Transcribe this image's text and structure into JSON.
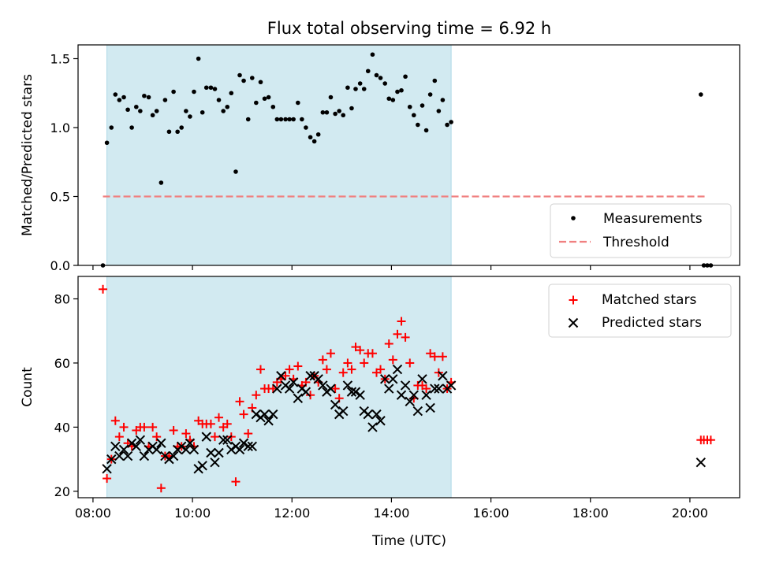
{
  "chart_data": {
    "title": "Flux total observing time = 6.92 h",
    "xlabel": "Time (UTC)",
    "x_unit": "hours (UTC)",
    "xlim": [
      7.7,
      21.0
    ],
    "x_ticks": [
      {
        "value": 8,
        "label": "08:00"
      },
      {
        "value": 10,
        "label": "10:00"
      },
      {
        "value": 12,
        "label": "12:00"
      },
      {
        "value": 14,
        "label": "14:00"
      },
      {
        "value": 16,
        "label": "16:00"
      },
      {
        "value": 18,
        "label": "18:00"
      },
      {
        "value": 20,
        "label": "20:00"
      }
    ],
    "observing_window": [
      8.28,
      15.2
    ],
    "observing_window_color": "#add8e6",
    "panels": [
      {
        "type": "scatter",
        "ylabel": "Matched/Predicted stars",
        "ylim": [
          0,
          1.6
        ],
        "y_ticks": [
          {
            "value": 0,
            "label": "0.0"
          },
          {
            "value": 0.5,
            "label": "0.5"
          },
          {
            "value": 1.0,
            "label": "1.0"
          },
          {
            "value": 1.5,
            "label": "1.5"
          }
        ],
        "legend": [
          "Measurements",
          "Threshold"
        ],
        "legend_position": "lower-right",
        "threshold": {
          "name": "Threshold",
          "y": 0.5,
          "x": [
            8.2,
            20.3
          ],
          "color": "#f08080"
        },
        "measurements": {
          "name": "Measurements",
          "color": "#000000",
          "x": [
            8.2,
            8.28,
            8.37,
            8.45,
            8.53,
            8.62,
            8.7,
            8.78,
            8.87,
            8.95,
            9.03,
            9.12,
            9.2,
            9.28,
            9.37,
            9.45,
            9.53,
            9.62,
            9.7,
            9.78,
            9.87,
            9.95,
            10.03,
            10.12,
            10.2,
            10.28,
            10.37,
            10.45,
            10.53,
            10.62,
            10.7,
            10.78,
            10.87,
            10.95,
            11.03,
            11.12,
            11.2,
            11.28,
            11.37,
            11.45,
            11.53,
            11.62,
            11.7,
            11.78,
            11.87,
            11.95,
            12.03,
            12.12,
            12.2,
            12.28,
            12.37,
            12.45,
            12.53,
            12.62,
            12.7,
            12.78,
            12.87,
            12.95,
            13.03,
            13.12,
            13.2,
            13.28,
            13.37,
            13.45,
            13.53,
            13.62,
            13.7,
            13.78,
            13.87,
            13.95,
            14.03,
            14.12,
            14.2,
            14.28,
            14.37,
            14.45,
            14.53,
            14.62,
            14.7,
            14.78,
            14.87,
            14.95,
            15.03,
            15.12,
            15.2,
            20.22,
            20.28,
            20.35,
            20.42
          ],
          "y": [
            0.0,
            0.89,
            1.0,
            1.24,
            1.2,
            1.22,
            1.13,
            1.0,
            1.15,
            1.12,
            1.23,
            1.22,
            1.09,
            1.12,
            0.6,
            1.2,
            0.97,
            1.26,
            0.97,
            1.0,
            1.12,
            1.08,
            1.26,
            1.5,
            1.11,
            1.29,
            1.29,
            1.28,
            1.2,
            1.12,
            1.15,
            1.25,
            0.68,
            1.38,
            1.34,
            1.06,
            1.36,
            1.18,
            1.33,
            1.21,
            1.22,
            1.15,
            1.06,
            1.06,
            1.06,
            1.06,
            1.06,
            1.18,
            1.06,
            1.0,
            0.93,
            0.9,
            0.95,
            1.11,
            1.11,
            1.22,
            1.1,
            1.12,
            1.09,
            1.29,
            1.14,
            1.28,
            1.32,
            1.28,
            1.41,
            1.53,
            1.38,
            1.36,
            1.32,
            1.21,
            1.2,
            1.26,
            1.27,
            1.37,
            1.15,
            1.09,
            1.02,
            1.16,
            0.98,
            1.24,
            1.34,
            1.12,
            1.2,
            1.02,
            1.04,
            1.24,
            0.0,
            0.0,
            0.0
          ]
        }
      },
      {
        "type": "scatter",
        "ylabel": "Count",
        "ylim": [
          18,
          87
        ],
        "y_ticks": [
          {
            "value": 20,
            "label": "20"
          },
          {
            "value": 40,
            "label": "40"
          },
          {
            "value": 60,
            "label": "60"
          },
          {
            "value": 80,
            "label": "80"
          }
        ],
        "legend": [
          "Matched stars",
          "Predicted stars"
        ],
        "legend_position": "upper-right",
        "series": [
          {
            "name": "Matched stars",
            "marker": "plus",
            "color": "#ff0000",
            "x": [
              8.2,
              8.28,
              8.37,
              8.45,
              8.53,
              8.62,
              8.7,
              8.78,
              8.87,
              8.95,
              9.03,
              9.12,
              9.2,
              9.28,
              9.37,
              9.45,
              9.53,
              9.62,
              9.7,
              9.78,
              9.87,
              9.95,
              10.03,
              10.12,
              10.2,
              10.28,
              10.37,
              10.45,
              10.53,
              10.62,
              10.7,
              10.78,
              10.87,
              10.95,
              11.03,
              11.12,
              11.2,
              11.28,
              11.37,
              11.45,
              11.53,
              11.62,
              11.7,
              11.78,
              11.87,
              11.95,
              12.03,
              12.12,
              12.2,
              12.28,
              12.37,
              12.45,
              12.53,
              12.62,
              12.7,
              12.78,
              12.87,
              12.95,
              13.03,
              13.12,
              13.2,
              13.28,
              13.37,
              13.45,
              13.53,
              13.62,
              13.7,
              13.78,
              13.87,
              13.95,
              14.03,
              14.12,
              14.2,
              14.28,
              14.37,
              14.45,
              14.53,
              14.62,
              14.7,
              14.78,
              14.87,
              14.95,
              15.03,
              15.12,
              15.2,
              20.22,
              20.28,
              20.35,
              20.42
            ],
            "y": [
              83,
              24,
              30,
              42,
              37,
              40,
              35,
              34,
              39,
              40,
              40,
              34,
              40,
              37,
              21,
              31,
              31,
              39,
              34,
              34,
              38,
              36,
              34,
              42,
              41,
              41,
              41,
              37,
              43,
              40,
              41,
              37,
              23,
              48,
              44,
              38,
              46,
              50,
              58,
              52,
              52,
              52,
              54,
              55,
              56,
              58,
              55,
              59,
              53,
              54,
              50,
              56,
              54,
              61,
              58,
              63,
              52,
              49,
              57,
              60,
              58,
              65,
              64,
              60,
              63,
              63,
              57,
              58,
              55,
              66,
              61,
              69,
              73,
              68,
              60,
              49,
              53,
              53,
              52,
              63,
              62,
              57,
              62,
              52,
              54,
              36,
              36,
              36,
              36
            ]
          },
          {
            "name": "Predicted stars",
            "marker": "x",
            "color": "#000000",
            "x": [
              8.28,
              8.37,
              8.45,
              8.53,
              8.62,
              8.7,
              8.78,
              8.87,
              8.95,
              9.03,
              9.12,
              9.2,
              9.28,
              9.37,
              9.45,
              9.53,
              9.62,
              9.7,
              9.78,
              9.87,
              9.95,
              10.03,
              10.12,
              10.2,
              10.28,
              10.37,
              10.45,
              10.53,
              10.62,
              10.7,
              10.78,
              10.87,
              10.95,
              11.03,
              11.12,
              11.2,
              11.28,
              11.37,
              11.45,
              11.53,
              11.62,
              11.7,
              11.78,
              11.87,
              11.95,
              12.03,
              12.12,
              12.2,
              12.28,
              12.37,
              12.45,
              12.53,
              12.62,
              12.7,
              12.78,
              12.87,
              12.95,
              13.03,
              13.12,
              13.2,
              13.28,
              13.37,
              13.45,
              13.53,
              13.62,
              13.7,
              13.78,
              13.87,
              13.95,
              14.03,
              14.12,
              14.2,
              14.28,
              14.37,
              14.45,
              14.53,
              14.62,
              14.7,
              14.78,
              14.87,
              14.95,
              15.03,
              15.12,
              15.2,
              20.22
            ],
            "y": [
              27,
              30,
              34,
              31,
              33,
              31,
              35,
              34,
              36,
              31,
              33,
              34,
              33,
              35,
              31,
              30,
              31,
              33,
              34,
              33,
              35,
              33,
              27,
              28,
              37,
              32,
              29,
              32,
              36,
              36,
              33,
              34,
              33,
              35,
              34,
              34,
              44,
              43,
              44,
              42,
              44,
              52,
              56,
              53,
              52,
              54,
              49,
              52,
              51,
              56,
              56,
              55,
              53,
              51,
              52,
              47,
              44,
              45,
              53,
              51,
              51,
              50,
              45,
              44,
              40,
              44,
              42,
              55,
              52,
              55,
              58,
              50,
              53,
              48,
              50,
              45,
              55,
              50,
              46,
              52,
              52,
              56,
              52,
              53,
              29
            ]
          }
        ]
      }
    ]
  }
}
